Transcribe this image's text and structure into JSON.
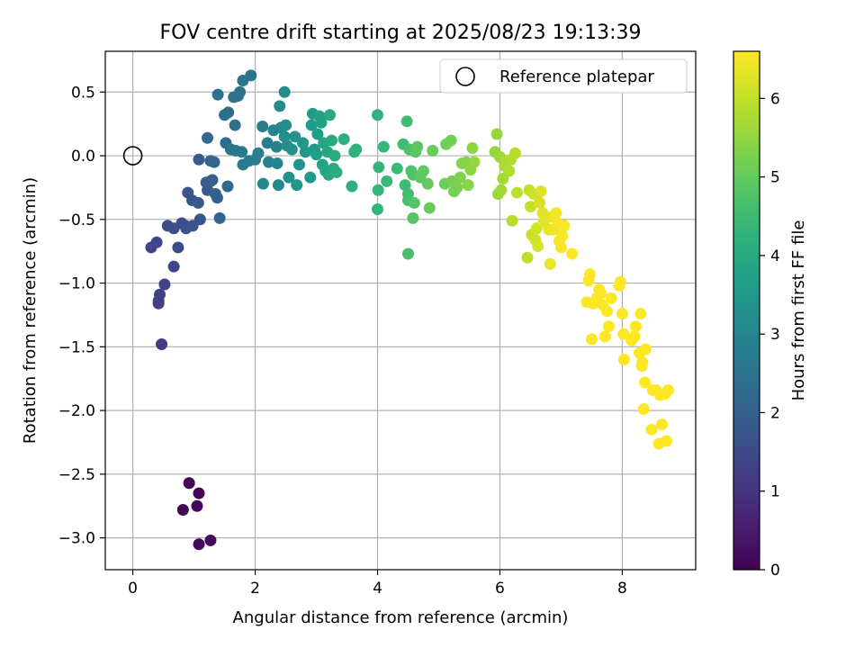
{
  "chart_data": {
    "type": "scatter",
    "title": "FOV centre drift starting at 2025/08/23 19:13:39",
    "xlabel": "Angular distance from reference (arcmin)",
    "ylabel": "Rotation from reference (arcmin)",
    "xlim": [
      -0.45,
      9.2
    ],
    "ylim": [
      -3.25,
      0.82
    ],
    "xticks": [
      0,
      2,
      4,
      6,
      8
    ],
    "xtick_labels": [
      "0",
      "2",
      "4",
      "6",
      "8"
    ],
    "yticks": [
      0.5,
      0.0,
      -0.5,
      -1.0,
      -1.5,
      -2.0,
      -2.5,
      -3.0
    ],
    "ytick_labels": [
      "0.5",
      "0.0",
      "−0.5",
      "−1.0",
      "−1.5",
      "−2.0",
      "−2.5",
      "−3.0"
    ],
    "grid": true,
    "legend": {
      "position": "top-right",
      "label": "Reference platepar"
    },
    "reference_point": {
      "x": 0.0,
      "y": 0.0
    },
    "colormap": "viridis",
    "colorbar": {
      "label": "Hours from first FF file",
      "range": [
        0,
        6.6
      ],
      "ticks": [
        0,
        1,
        2,
        3,
        4,
        5,
        6
      ],
      "tick_labels": [
        "0",
        "1",
        "2",
        "3",
        "4",
        "5",
        "6"
      ]
    },
    "points": [
      {
        "x": 0.92,
        "y": -2.57,
        "t": 0.05
      },
      {
        "x": 1.08,
        "y": -2.65,
        "t": 0.08
      },
      {
        "x": 1.05,
        "y": -2.75,
        "t": 0.1
      },
      {
        "x": 0.82,
        "y": -2.78,
        "t": 0.12
      },
      {
        "x": 1.08,
        "y": -3.05,
        "t": 0.15
      },
      {
        "x": 1.27,
        "y": -3.02,
        "t": 0.18
      },
      {
        "x": 0.47,
        "y": -1.48,
        "t": 1.2
      },
      {
        "x": 0.42,
        "y": -1.16,
        "t": 1.28
      },
      {
        "x": 0.42,
        "y": -1.14,
        "t": 1.3
      },
      {
        "x": 0.44,
        "y": -1.09,
        "t": 1.33
      },
      {
        "x": 0.52,
        "y": -1.01,
        "t": 1.36
      },
      {
        "x": 0.67,
        "y": -0.87,
        "t": 1.4
      },
      {
        "x": 0.3,
        "y": -0.72,
        "t": 1.43
      },
      {
        "x": 0.39,
        "y": -0.68,
        "t": 1.46
      },
      {
        "x": 0.74,
        "y": -0.72,
        "t": 1.5
      },
      {
        "x": 0.57,
        "y": -0.55,
        "t": 1.53
      },
      {
        "x": 0.67,
        "y": -0.57,
        "t": 1.56
      },
      {
        "x": 0.8,
        "y": -0.53,
        "t": 1.6
      },
      {
        "x": 0.86,
        "y": -0.55,
        "t": 1.63
      },
      {
        "x": 0.87,
        "y": -0.57,
        "t": 1.66
      },
      {
        "x": 0.98,
        "y": -0.55,
        "t": 1.7
      },
      {
        "x": 1.1,
        "y": -0.5,
        "t": 1.73
      },
      {
        "x": 0.9,
        "y": -0.29,
        "t": 1.76
      },
      {
        "x": 0.97,
        "y": -0.35,
        "t": 1.8
      },
      {
        "x": 1.07,
        "y": -0.37,
        "t": 1.83
      },
      {
        "x": 1.22,
        "y": -0.27,
        "t": 1.86
      },
      {
        "x": 1.08,
        "y": -0.03,
        "t": 1.9
      },
      {
        "x": 1.2,
        "y": -0.21,
        "t": 1.93
      },
      {
        "x": 1.27,
        "y": -0.2,
        "t": 1.96
      },
      {
        "x": 1.3,
        "y": -0.19,
        "t": 2.0
      },
      {
        "x": 1.35,
        "y": -0.3,
        "t": 2.03
      },
      {
        "x": 1.38,
        "y": -0.33,
        "t": 2.06
      },
      {
        "x": 1.42,
        "y": -0.49,
        "t": 2.1
      },
      {
        "x": 1.27,
        "y": -0.04,
        "t": 2.13
      },
      {
        "x": 1.33,
        "y": -0.05,
        "t": 2.16
      },
      {
        "x": 1.22,
        "y": 0.14,
        "t": 2.2
      },
      {
        "x": 1.55,
        "y": -0.24,
        "t": 2.23
      },
      {
        "x": 1.52,
        "y": 0.1,
        "t": 2.26
      },
      {
        "x": 1.5,
        "y": 0.32,
        "t": 2.3
      },
      {
        "x": 1.56,
        "y": 0.34,
        "t": 2.33
      },
      {
        "x": 1.67,
        "y": 0.24,
        "t": 2.36
      },
      {
        "x": 1.39,
        "y": 0.48,
        "t": 2.4
      },
      {
        "x": 1.65,
        "y": 0.46,
        "t": 2.43
      },
      {
        "x": 1.72,
        "y": 0.47,
        "t": 2.46
      },
      {
        "x": 1.75,
        "y": 0.5,
        "t": 2.5
      },
      {
        "x": 1.8,
        "y": 0.59,
        "t": 2.53
      },
      {
        "x": 1.93,
        "y": 0.63,
        "t": 2.56
      },
      {
        "x": 1.6,
        "y": 0.05,
        "t": 2.6
      },
      {
        "x": 1.68,
        "y": 0.04,
        "t": 2.63
      },
      {
        "x": 1.78,
        "y": 0.03,
        "t": 2.66
      },
      {
        "x": 1.8,
        "y": -0.07,
        "t": 2.7
      },
      {
        "x": 1.9,
        "y": -0.04,
        "t": 2.73
      },
      {
        "x": 2.0,
        "y": -0.03,
        "t": 2.76
      },
      {
        "x": 2.05,
        "y": 0.02,
        "t": 2.8
      },
      {
        "x": 2.12,
        "y": 0.23,
        "t": 2.83
      },
      {
        "x": 2.2,
        "y": 0.1,
        "t": 2.86
      },
      {
        "x": 2.22,
        "y": -0.05,
        "t": 2.9
      },
      {
        "x": 2.3,
        "y": 0.2,
        "t": 2.93
      },
      {
        "x": 2.35,
        "y": 0.07,
        "t": 2.96
      },
      {
        "x": 2.36,
        "y": -0.06,
        "t": 3.0
      },
      {
        "x": 2.42,
        "y": 0.22,
        "t": 3.03
      },
      {
        "x": 2.13,
        "y": -0.22,
        "t": 3.06
      },
      {
        "x": 2.38,
        "y": -0.23,
        "t": 3.1
      },
      {
        "x": 2.4,
        "y": 0.39,
        "t": 3.13
      },
      {
        "x": 2.48,
        "y": 0.5,
        "t": 3.16
      },
      {
        "x": 2.5,
        "y": 0.24,
        "t": 3.2
      },
      {
        "x": 2.48,
        "y": 0.15,
        "t": 3.23
      },
      {
        "x": 2.52,
        "y": 0.08,
        "t": 3.26
      },
      {
        "x": 2.55,
        "y": -0.17,
        "t": 3.3
      },
      {
        "x": 2.6,
        "y": 0.05,
        "t": 3.33
      },
      {
        "x": 2.65,
        "y": 0.15,
        "t": 3.36
      },
      {
        "x": 2.68,
        "y": -0.23,
        "t": 3.4
      },
      {
        "x": 2.72,
        "y": -0.07,
        "t": 3.43
      },
      {
        "x": 2.78,
        "y": 0.1,
        "t": 3.46
      },
      {
        "x": 2.82,
        "y": 0.03,
        "t": 3.5
      },
      {
        "x": 2.9,
        "y": -0.17,
        "t": 3.53
      },
      {
        "x": 2.92,
        "y": 0.24,
        "t": 3.56
      },
      {
        "x": 2.94,
        "y": 0.33,
        "t": 3.6
      },
      {
        "x": 2.97,
        "y": 0.05,
        "t": 3.63
      },
      {
        "x": 3.0,
        "y": 0.01,
        "t": 3.66
      },
      {
        "x": 3.02,
        "y": 0.17,
        "t": 3.7
      },
      {
        "x": 3.05,
        "y": 0.31,
        "t": 3.73
      },
      {
        "x": 3.08,
        "y": 0.26,
        "t": 3.76
      },
      {
        "x": 3.1,
        "y": -0.07,
        "t": 3.8
      },
      {
        "x": 3.12,
        "y": 0.1,
        "t": 3.83
      },
      {
        "x": 3.15,
        "y": -0.12,
        "t": 3.86
      },
      {
        "x": 3.18,
        "y": 0.03,
        "t": 3.9
      },
      {
        "x": 3.2,
        "y": -0.15,
        "t": 3.93
      },
      {
        "x": 3.22,
        "y": 0.32,
        "t": 3.96
      },
      {
        "x": 3.25,
        "y": 0.12,
        "t": 4.0
      },
      {
        "x": 3.28,
        "y": -0.1,
        "t": 4.03
      },
      {
        "x": 3.3,
        "y": 0.0,
        "t": 4.06
      },
      {
        "x": 3.33,
        "y": -0.13,
        "t": 4.1
      },
      {
        "x": 3.45,
        "y": 0.13,
        "t": 4.13
      },
      {
        "x": 3.58,
        "y": -0.24,
        "t": 4.16
      },
      {
        "x": 3.62,
        "y": 0.03,
        "t": 4.2
      },
      {
        "x": 3.65,
        "y": 0.05,
        "t": 4.23
      },
      {
        "x": 4.0,
        "y": 0.32,
        "t": 4.26
      },
      {
        "x": 4.0,
        "y": -0.42,
        "t": 4.3
      },
      {
        "x": 4.01,
        "y": -0.27,
        "t": 4.33
      },
      {
        "x": 4.02,
        "y": -0.09,
        "t": 4.36
      },
      {
        "x": 4.1,
        "y": 0.07,
        "t": 4.4
      },
      {
        "x": 4.15,
        "y": -0.2,
        "t": 4.43
      },
      {
        "x": 4.32,
        "y": -0.1,
        "t": 4.46
      },
      {
        "x": 4.42,
        "y": 0.09,
        "t": 4.5
      },
      {
        "x": 4.45,
        "y": -0.23,
        "t": 4.53
      },
      {
        "x": 4.48,
        "y": 0.27,
        "t": 4.56
      },
      {
        "x": 4.5,
        "y": -0.3,
        "t": 4.6
      },
      {
        "x": 4.5,
        "y": -0.35,
        "t": 4.63
      },
      {
        "x": 4.5,
        "y": -0.77,
        "t": 4.66
      },
      {
        "x": 4.52,
        "y": 0.05,
        "t": 4.7
      },
      {
        "x": 4.55,
        "y": -0.12,
        "t": 4.73
      },
      {
        "x": 4.58,
        "y": -0.15,
        "t": 4.76
      },
      {
        "x": 4.58,
        "y": -0.49,
        "t": 4.8
      },
      {
        "x": 4.6,
        "y": -0.37,
        "t": 4.83
      },
      {
        "x": 4.62,
        "y": 0.03,
        "t": 4.86
      },
      {
        "x": 4.65,
        "y": 0.07,
        "t": 4.9
      },
      {
        "x": 4.7,
        "y": -0.17,
        "t": 4.93
      },
      {
        "x": 4.75,
        "y": -0.12,
        "t": 4.96
      },
      {
        "x": 4.82,
        "y": -0.22,
        "t": 5.0
      },
      {
        "x": 4.85,
        "y": -0.41,
        "t": 5.03
      },
      {
        "x": 4.9,
        "y": 0.04,
        "t": 5.06
      },
      {
        "x": 5.1,
        "y": -0.22,
        "t": 5.1
      },
      {
        "x": 5.12,
        "y": 0.09,
        "t": 5.13
      },
      {
        "x": 5.2,
        "y": 0.12,
        "t": 5.16
      },
      {
        "x": 5.22,
        "y": -0.2,
        "t": 5.2
      },
      {
        "x": 5.25,
        "y": -0.28,
        "t": 5.23
      },
      {
        "x": 5.3,
        "y": -0.25,
        "t": 5.26
      },
      {
        "x": 5.35,
        "y": -0.17,
        "t": 5.3
      },
      {
        "x": 5.38,
        "y": -0.06,
        "t": 5.33
      },
      {
        "x": 5.45,
        "y": -0.05,
        "t": 5.36
      },
      {
        "x": 5.48,
        "y": -0.23,
        "t": 5.4
      },
      {
        "x": 5.52,
        "y": -0.11,
        "t": 5.43
      },
      {
        "x": 5.55,
        "y": 0.06,
        "t": 5.46
      },
      {
        "x": 5.58,
        "y": -0.05,
        "t": 5.5
      },
      {
        "x": 5.92,
        "y": 0.03,
        "t": 5.53
      },
      {
        "x": 5.95,
        "y": 0.17,
        "t": 5.56
      },
      {
        "x": 6.0,
        "y": -0.01,
        "t": 5.6
      },
      {
        "x": 5.97,
        "y": -0.3,
        "t": 5.63
      },
      {
        "x": 6.02,
        "y": -0.27,
        "t": 5.66
      },
      {
        "x": 6.05,
        "y": -0.18,
        "t": 5.7
      },
      {
        "x": 6.08,
        "y": -0.08,
        "t": 5.73
      },
      {
        "x": 6.1,
        "y": -0.04,
        "t": 5.76
      },
      {
        "x": 6.15,
        "y": -0.12,
        "t": 5.8
      },
      {
        "x": 6.18,
        "y": -0.03,
        "t": 5.83
      },
      {
        "x": 6.2,
        "y": -0.51,
        "t": 5.86
      },
      {
        "x": 6.25,
        "y": 0.02,
        "t": 5.9
      },
      {
        "x": 6.28,
        "y": -0.29,
        "t": 5.93
      },
      {
        "x": 6.45,
        "y": -0.8,
        "t": 5.96
      },
      {
        "x": 6.48,
        "y": -0.27,
        "t": 6.0
      },
      {
        "x": 6.5,
        "y": -0.4,
        "t": 6.03
      },
      {
        "x": 6.52,
        "y": -0.62,
        "t": 6.06
      },
      {
        "x": 6.55,
        "y": -0.3,
        "t": 6.1
      },
      {
        "x": 6.58,
        "y": -0.66,
        "t": 6.13
      },
      {
        "x": 6.6,
        "y": -0.57,
        "t": 6.16
      },
      {
        "x": 6.62,
        "y": -0.71,
        "t": 6.2
      },
      {
        "x": 6.65,
        "y": -0.37,
        "t": 6.23
      },
      {
        "x": 6.67,
        "y": -0.28,
        "t": 6.26
      },
      {
        "x": 6.7,
        "y": -0.45,
        "t": 6.3
      },
      {
        "x": 6.72,
        "y": -0.52,
        "t": 6.33
      },
      {
        "x": 6.8,
        "y": -0.58,
        "t": 6.36
      },
      {
        "x": 6.82,
        "y": -0.85,
        "t": 6.4
      },
      {
        "x": 6.85,
        "y": -0.48,
        "t": 6.43
      },
      {
        "x": 6.88,
        "y": -0.58,
        "t": 6.46
      },
      {
        "x": 6.92,
        "y": -0.45,
        "t": 6.5
      },
      {
        "x": 6.95,
        "y": -0.53,
        "t": 6.52
      },
      {
        "x": 6.97,
        "y": -0.67,
        "t": 6.54
      },
      {
        "x": 7.0,
        "y": -0.72,
        "t": 6.55
      },
      {
        "x": 7.02,
        "y": -0.63,
        "t": 6.56
      },
      {
        "x": 7.05,
        "y": -0.55,
        "t": 6.57
      },
      {
        "x": 7.18,
        "y": -0.77,
        "t": 6.58
      },
      {
        "x": 7.42,
        "y": -1.15,
        "t": 6.58
      },
      {
        "x": 7.45,
        "y": -0.98,
        "t": 6.59
      },
      {
        "x": 7.47,
        "y": -0.93,
        "t": 6.59
      },
      {
        "x": 7.5,
        "y": -1.44,
        "t": 6.59
      },
      {
        "x": 7.52,
        "y": -1.16,
        "t": 6.6
      },
      {
        "x": 7.58,
        "y": -1.12,
        "t": 6.6
      },
      {
        "x": 7.62,
        "y": -1.05,
        "t": 6.6
      },
      {
        "x": 7.65,
        "y": -1.08,
        "t": 6.6
      },
      {
        "x": 7.68,
        "y": -1.17,
        "t": 6.6
      },
      {
        "x": 7.72,
        "y": -1.42,
        "t": 6.6
      },
      {
        "x": 7.75,
        "y": -1.22,
        "t": 6.6
      },
      {
        "x": 7.78,
        "y": -1.34,
        "t": 6.6
      },
      {
        "x": 7.82,
        "y": -1.12,
        "t": 6.6
      },
      {
        "x": 7.95,
        "y": -1.02,
        "t": 6.6
      },
      {
        "x": 7.97,
        "y": -0.99,
        "t": 6.6
      },
      {
        "x": 8.0,
        "y": -1.24,
        "t": 6.6
      },
      {
        "x": 8.02,
        "y": -1.4,
        "t": 6.6
      },
      {
        "x": 8.03,
        "y": -1.6,
        "t": 6.6
      },
      {
        "x": 8.15,
        "y": -1.45,
        "t": 6.6
      },
      {
        "x": 8.2,
        "y": -1.42,
        "t": 6.6
      },
      {
        "x": 8.22,
        "y": -1.34,
        "t": 6.6
      },
      {
        "x": 8.28,
        "y": -1.55,
        "t": 6.6
      },
      {
        "x": 8.3,
        "y": -1.24,
        "t": 6.6
      },
      {
        "x": 8.32,
        "y": -1.65,
        "t": 6.6
      },
      {
        "x": 8.33,
        "y": -1.62,
        "t": 6.6
      },
      {
        "x": 8.35,
        "y": -1.99,
        "t": 6.6
      },
      {
        "x": 8.37,
        "y": -1.78,
        "t": 6.6
      },
      {
        "x": 8.38,
        "y": -1.52,
        "t": 6.6
      },
      {
        "x": 8.48,
        "y": -2.15,
        "t": 6.6
      },
      {
        "x": 8.5,
        "y": -1.84,
        "t": 6.6
      },
      {
        "x": 8.55,
        "y": -1.84,
        "t": 6.6
      },
      {
        "x": 8.6,
        "y": -2.26,
        "t": 6.6
      },
      {
        "x": 8.62,
        "y": -1.88,
        "t": 6.6
      },
      {
        "x": 8.65,
        "y": -2.11,
        "t": 6.6
      },
      {
        "x": 8.7,
        "y": -1.87,
        "t": 6.6
      },
      {
        "x": 8.72,
        "y": -2.24,
        "t": 6.6
      },
      {
        "x": 8.75,
        "y": -1.84,
        "t": 6.6
      }
    ]
  }
}
